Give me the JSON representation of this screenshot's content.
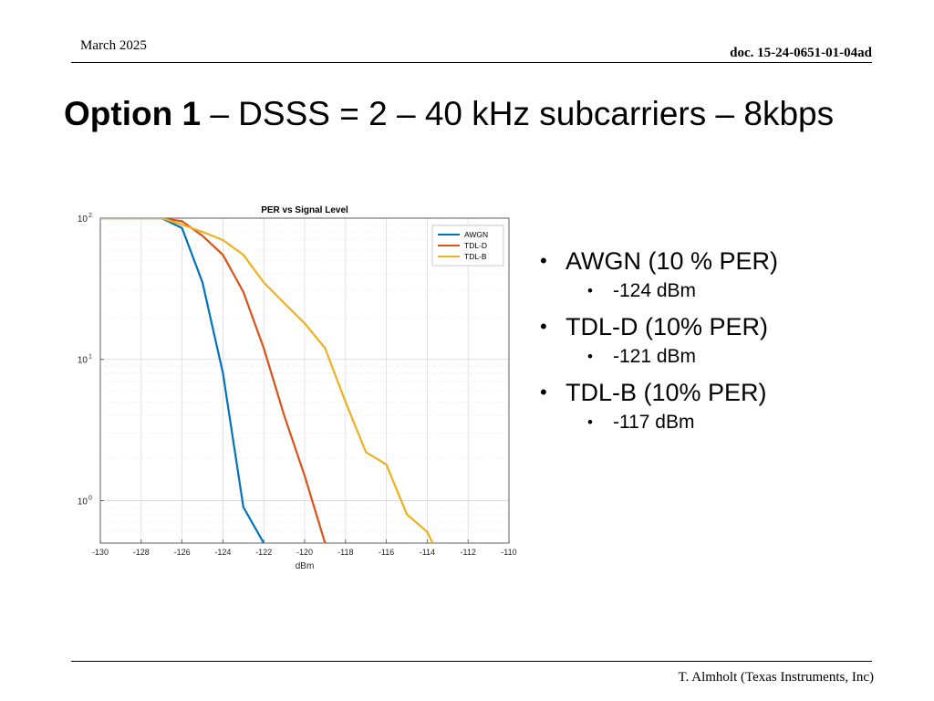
{
  "header": {
    "date": "March 2025",
    "doc_id": "doc. 15-24-0651-01-04ad"
  },
  "slide": {
    "title_lead": "Option 1",
    "title_rest": " – DSSS = 2 – 40 kHz subcarriers – 8kbps"
  },
  "bullets": [
    {
      "label": "AWGN (10 % PER)",
      "value": "-124 dBm"
    },
    {
      "label": "TDL-D (10% PER)",
      "value": "-121 dBm"
    },
    {
      "label": "TDL-B (10% PER)",
      "value": "-117 dBm"
    }
  ],
  "footer": {
    "author": "T. Almholt (Texas Instruments, Inc)"
  },
  "chart_data": {
    "type": "line",
    "title": "PER vs Signal Level",
    "xlabel": "dBm",
    "ylabel": "",
    "xlim": [
      -130,
      -110
    ],
    "x_ticks": [
      -130,
      -128,
      -126,
      -124,
      -122,
      -120,
      -118,
      -116,
      -114,
      -112,
      -110
    ],
    "y_scale": "log",
    "ylim": [
      0.5,
      100
    ],
    "y_ticks": [
      {
        "value": 1,
        "base": "10",
        "exp": "0"
      },
      {
        "value": 10,
        "base": "10",
        "exp": "1"
      },
      {
        "value": 100,
        "base": "10",
        "exp": "2"
      }
    ],
    "grid": true,
    "legend_position": "top-right",
    "series": [
      {
        "name": "AWGN",
        "color": "#0072BD",
        "x": [
          -130,
          -127,
          -126,
          -125,
          -124,
          -123,
          -122
        ],
        "y": [
          100,
          100,
          85,
          35,
          8,
          0.9,
          0.5
        ]
      },
      {
        "name": "TDL-D",
        "color": "#D95319",
        "x": [
          -130,
          -127,
          -126,
          -125,
          -124,
          -123,
          -122,
          -121,
          -120,
          -119,
          -118
        ],
        "y": [
          100,
          100,
          95,
          75,
          55,
          30,
          12,
          4,
          1.5,
          0.5,
          0.2
        ]
      },
      {
        "name": "TDL-B",
        "color": "#EDB120",
        "x": [
          -130,
          -127,
          -126,
          -125,
          -124,
          -123,
          -122,
          -121,
          -120,
          -119,
          -118,
          -117,
          -116,
          -115,
          -114,
          -113,
          -112
        ],
        "y": [
          100,
          100,
          90,
          80,
          70,
          55,
          35,
          25,
          18,
          12,
          5,
          2.2,
          1.8,
          0.8,
          0.6,
          0.3,
          0.5
        ]
      }
    ]
  }
}
